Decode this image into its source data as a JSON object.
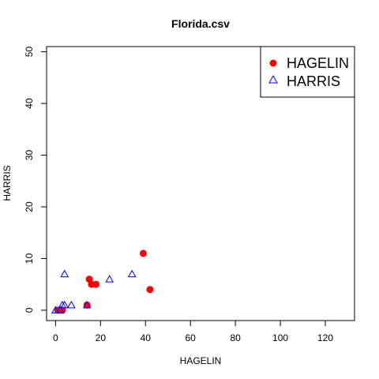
{
  "chart_data": {
    "type": "scatter",
    "title": "Florida.csv",
    "xlabel": "HAGELIN",
    "ylabel": "HARRIS",
    "xlim": [
      -4,
      133
    ],
    "ylim": [
      -2,
      51
    ],
    "xticks": [
      0,
      20,
      40,
      60,
      80,
      100,
      120
    ],
    "yticks": [
      0,
      10,
      20,
      30,
      40,
      50
    ],
    "grid": false,
    "legend_position": "top-right",
    "series": [
      {
        "name": "HAGELIN",
        "marker": "filled-circle",
        "color": "#ff0000",
        "x": [
          1,
          2,
          3,
          14,
          15,
          16,
          18,
          39,
          42
        ],
        "y": [
          0,
          0,
          0,
          1,
          6,
          5,
          5,
          11,
          4
        ]
      },
      {
        "name": "HARRIS",
        "marker": "open-triangle",
        "color": "#0000ff",
        "x": [
          0,
          2,
          3,
          4,
          4,
          7,
          14,
          24,
          34
        ],
        "y": [
          0,
          0,
          1,
          1,
          7,
          1,
          1,
          6,
          7
        ]
      }
    ]
  }
}
